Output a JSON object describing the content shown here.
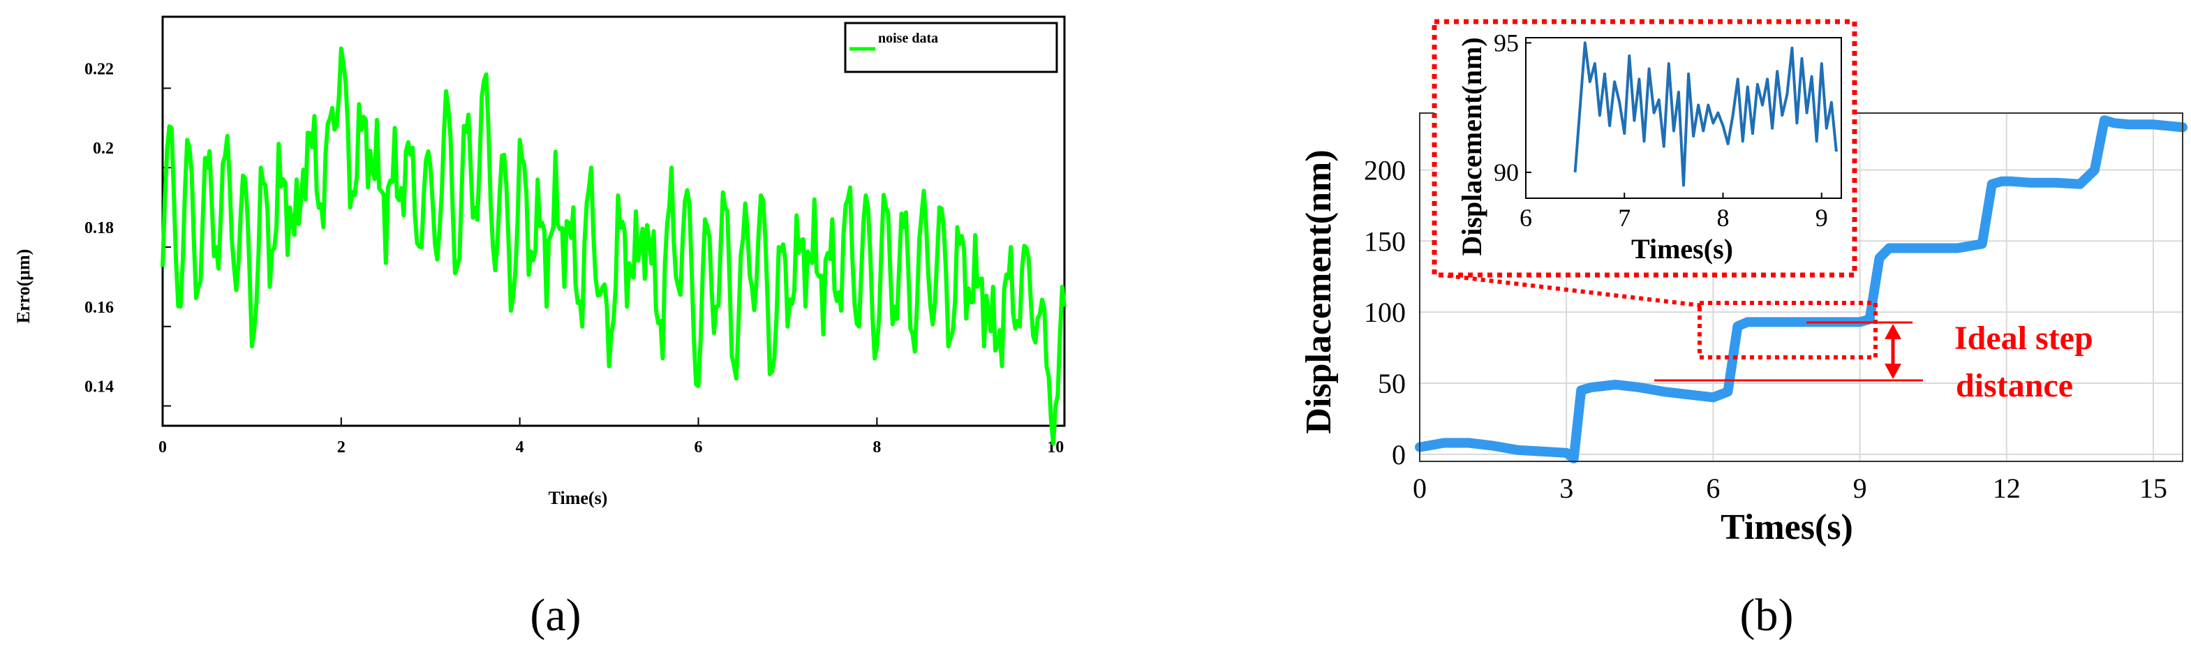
{
  "panels": [
    "(a)",
    "(b)"
  ],
  "chart_data": [
    {
      "type": "line",
      "panel": "(a)",
      "xlabel": "Time(s)",
      "ylabel": "Erro(μm)",
      "xlim": [
        0,
        10.1
      ],
      "ylim": [
        0.135,
        0.238
      ],
      "xticks": [
        0,
        2,
        4,
        6,
        8,
        10
      ],
      "yticks": [
        0.14,
        0.16,
        0.18,
        0.2,
        0.22
      ],
      "ytick_labels": [
        "0.14",
        "0.16",
        "0.18",
        "0.2",
        "0.22"
      ],
      "legend": {
        "entries": [
          "noise data"
        ],
        "position": "top-right"
      },
      "grid": false,
      "colors": {
        "series": "#00ff00"
      },
      "series": [
        {
          "name": "noise data",
          "description": "high-frequency noise",
          "x": [
            0,
            0.1,
            0.2,
            0.3,
            0.4,
            0.5,
            0.6,
            0.7,
            0.8,
            0.9,
            1.0,
            1.1,
            1.2,
            1.3,
            1.4,
            1.5,
            1.6,
            1.7,
            1.8,
            1.9,
            2.0,
            2.1,
            2.2,
            2.3,
            2.4,
            2.5,
            2.6,
            2.7,
            2.8,
            2.9,
            3.0,
            3.1,
            3.2,
            3.3,
            3.4,
            3.5,
            3.6,
            3.7,
            3.8,
            3.9,
            4.0,
            4.1,
            4.2,
            4.3,
            4.4,
            4.5,
            4.6,
            4.7,
            4.8,
            4.9,
            5.0,
            5.1,
            5.2,
            5.3,
            5.4,
            5.5,
            5.6,
            5.7,
            5.8,
            5.9,
            6.0,
            6.1,
            6.2,
            6.3,
            6.4,
            6.5,
            6.6,
            6.7,
            6.8,
            6.9,
            7.0,
            7.1,
            7.2,
            7.3,
            7.4,
            7.5,
            7.6,
            7.7,
            7.8,
            7.9,
            8.0,
            8.1,
            8.2,
            8.3,
            8.4,
            8.5,
            8.6,
            8.7,
            8.8,
            8.9,
            9.0,
            9.1,
            9.2,
            9.3,
            9.4,
            9.5,
            9.6,
            9.7,
            9.8,
            9.9,
            10.0,
            10.1
          ],
          "values": [
            0.175,
            0.21,
            0.165,
            0.205,
            0.17,
            0.2,
            0.18,
            0.203,
            0.175,
            0.198,
            0.155,
            0.2,
            0.17,
            0.206,
            0.178,
            0.197,
            0.192,
            0.213,
            0.185,
            0.215,
            0.23,
            0.19,
            0.216,
            0.195,
            0.212,
            0.176,
            0.21,
            0.188,
            0.205,
            0.18,
            0.2,
            0.184,
            0.215,
            0.175,
            0.209,
            0.19,
            0.222,
            0.18,
            0.203,
            0.164,
            0.207,
            0.173,
            0.197,
            0.165,
            0.204,
            0.17,
            0.19,
            0.16,
            0.2,
            0.168,
            0.15,
            0.193,
            0.165,
            0.189,
            0.172,
            0.184,
            0.152,
            0.2,
            0.168,
            0.191,
            0.145,
            0.185,
            0.165,
            0.19,
            0.15,
            0.182,
            0.17,
            0.193,
            0.148,
            0.18,
            0.16,
            0.188,
            0.165,
            0.192,
            0.158,
            0.187,
            0.164,
            0.195,
            0.16,
            0.19,
            0.155,
            0.19,
            0.165,
            0.185,
            0.158,
            0.188,
            0.165,
            0.19,
            0.155,
            0.185,
            0.162,
            0.183,
            0.155,
            0.17,
            0.15,
            0.18,
            0.16,
            0.177,
            0.162,
            0.15,
            0.14,
            0.165
          ]
        }
      ]
    },
    {
      "type": "line",
      "panel": "(b)",
      "xlabel": "Times(s)",
      "ylabel": "Displacement(nm)",
      "xlim": [
        0,
        15.6
      ],
      "ylim": [
        -5,
        240
      ],
      "xticks": [
        0,
        3,
        6,
        9,
        12,
        15
      ],
      "yticks": [
        0,
        50,
        100,
        150,
        200
      ],
      "grid": true,
      "colors": {
        "series": "#3399ee",
        "annotation": "#ff0000"
      },
      "annotations": [
        "Ideal step",
        "distance"
      ],
      "series": [
        {
          "x": [
            0,
            0.5,
            1.0,
            1.5,
            2.0,
            2.5,
            3.0,
            3.15,
            3.3,
            3.5,
            4.0,
            4.5,
            5.0,
            5.5,
            6.0,
            6.3,
            6.5,
            6.7,
            7.0,
            8.0,
            9.0,
            9.2,
            9.4,
            9.6,
            10.0,
            11.0,
            11.5,
            11.7,
            11.9,
            12.1,
            12.5,
            13.0,
            13.5,
            13.8,
            14.0,
            14.2,
            14.5,
            15.0,
            15.6
          ],
          "values": [
            5,
            8,
            8,
            6,
            3,
            2,
            1,
            -3,
            45,
            47,
            49,
            47,
            44,
            42,
            40,
            44,
            90,
            93,
            93,
            93,
            93,
            95,
            138,
            145,
            145,
            145,
            148,
            190,
            192,
            192,
            191,
            191,
            190,
            200,
            235,
            233,
            232,
            232,
            230
          ]
        }
      ]
    },
    {
      "type": "line",
      "panel": "(b) inset",
      "xlabel": "Times(s)",
      "ylabel": "Displacement(nm)",
      "xlim": [
        6,
        9.2
      ],
      "ylim": [
        89,
        95.2
      ],
      "xticks": [
        6,
        7,
        8,
        9
      ],
      "yticks": [
        90,
        95
      ],
      "colors": {
        "series": "#1f6fb5"
      },
      "series": [
        {
          "x": [
            6.5,
            6.55,
            6.6,
            6.65,
            6.7,
            6.75,
            6.8,
            6.85,
            6.9,
            6.95,
            7.0,
            7.05,
            7.1,
            7.15,
            7.2,
            7.25,
            7.3,
            7.35,
            7.4,
            7.45,
            7.5,
            7.55,
            7.6,
            7.65,
            7.7,
            7.75,
            7.8,
            7.85,
            7.9,
            7.95,
            8.0,
            8.05,
            8.1,
            8.15,
            8.2,
            8.25,
            8.3,
            8.35,
            8.4,
            8.45,
            8.5,
            8.55,
            8.6,
            8.65,
            8.7,
            8.75,
            8.8,
            8.85,
            8.9,
            8.95,
            9.0,
            9.05,
            9.1,
            9.15
          ],
          "values": [
            90,
            92.5,
            95,
            93.5,
            94.2,
            92.2,
            93.8,
            91.8,
            93.5,
            92.7,
            91.5,
            94.5,
            92,
            93.6,
            91.2,
            94,
            92.3,
            92.8,
            91,
            94.2,
            91.6,
            93.1,
            89.5,
            93.8,
            91.4,
            92.6,
            91.6,
            92.6,
            91.9,
            92.3,
            91.8,
            91.1,
            92.2,
            93.6,
            91.2,
            93.3,
            91.5,
            93.4,
            92.6,
            93.6,
            91.7,
            93.9,
            92.2,
            93,
            94.8,
            91.9,
            94.4,
            92.3,
            93.7,
            91.2,
            94.2,
            91.7,
            92.7,
            90.8
          ]
        }
      ]
    }
  ]
}
